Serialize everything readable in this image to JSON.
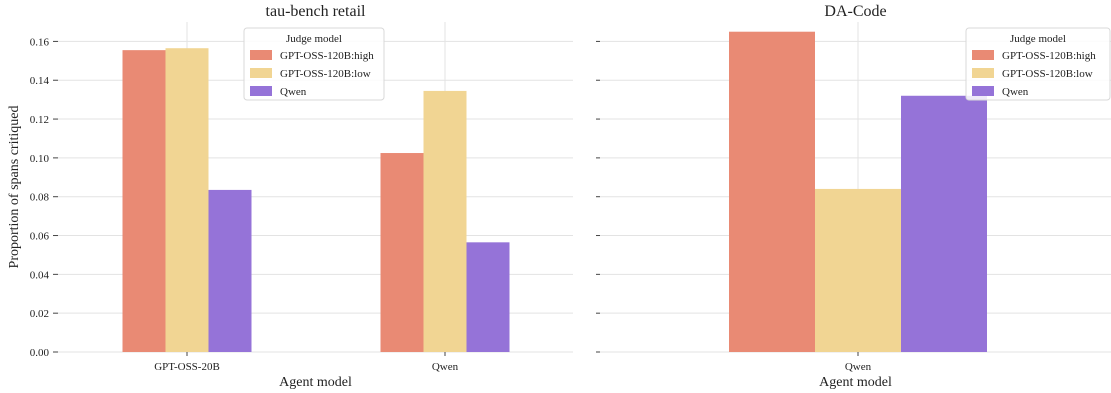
{
  "colors": {
    "background": "#ffffff",
    "grid": "#e3e3e3",
    "axis_text": "#222222",
    "series": [
      "#e98a74",
      "#f1d593",
      "#9573d8"
    ]
  },
  "chart_data": [
    {
      "type": "bar",
      "title": "tau-bench retail",
      "xlabel": "Agent model",
      "ylabel": "Proportion of spans critiqued",
      "categories": [
        "GPT-OSS-20B",
        "Qwen"
      ],
      "series": [
        {
          "name": "GPT-OSS-120B:high",
          "values": [
            0.1555,
            0.1025
          ]
        },
        {
          "name": "GPT-OSS-120B:low",
          "values": [
            0.1565,
            0.1345
          ]
        },
        {
          "name": "Qwen",
          "values": [
            0.0835,
            0.0565
          ]
        }
      ],
      "ylim": [
        0,
        0.17
      ],
      "yticks": [
        "0.00",
        "0.02",
        "0.04",
        "0.06",
        "0.08",
        "0.10",
        "0.12",
        "0.14",
        "0.16"
      ],
      "grid": true,
      "legend": {
        "title": "Judge model",
        "position": "top-center"
      }
    },
    {
      "type": "bar",
      "title": "DA-Code",
      "xlabel": "Agent model",
      "ylabel": "",
      "categories": [
        "Qwen"
      ],
      "series": [
        {
          "name": "GPT-OSS-120B:high",
          "values": [
            0.165
          ]
        },
        {
          "name": "GPT-OSS-120B:low",
          "values": [
            0.084
          ]
        },
        {
          "name": "Qwen",
          "values": [
            0.132
          ]
        }
      ],
      "ylim": [
        0,
        0.17
      ],
      "yticks": [
        "",
        "",
        "",
        "",
        "",
        "",
        "",
        "",
        ""
      ],
      "grid": true,
      "legend": {
        "title": "Judge model",
        "position": "top-right"
      }
    }
  ]
}
